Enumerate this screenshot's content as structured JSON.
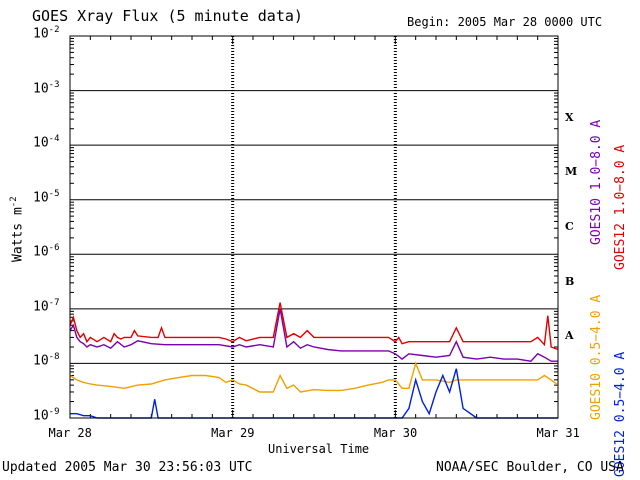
{
  "header": {
    "title": "GOES Xray Flux (5 minute data)",
    "begin": "Begin:  2005 Mar 28 0000 UTC"
  },
  "footer": {
    "updated": "Updated 2005 Mar 30 23:56:03 UTC",
    "credit": "NOAA/SEC Boulder, CO USA"
  },
  "chart_data": {
    "type": "line",
    "title": "GOES Xray Flux (5 minute data)",
    "xlabel": "Universal Time",
    "ylabel": "Watts m-2",
    "ylabel_main": "Watts m",
    "ylabel_sup": "-2",
    "yscale": "log",
    "ylim": [
      1e-09,
      0.01
    ],
    "xlim": [
      0,
      72
    ],
    "grid": true,
    "x_unit": "hours since 2005 Mar 28 0000 UTC",
    "x_ticks": [
      {
        "x": 0,
        "label": "Mar 28"
      },
      {
        "x": 24,
        "label": "Mar 29"
      },
      {
        "x": 48,
        "label": "Mar 30"
      },
      {
        "x": 72,
        "label": "Mar 31"
      }
    ],
    "y_ticks": [
      {
        "exp": -9,
        "label": "10",
        "sup": "-9"
      },
      {
        "exp": -8,
        "label": "10",
        "sup": "-8"
      },
      {
        "exp": -7,
        "label": "10",
        "sup": "-7"
      },
      {
        "exp": -6,
        "label": "10",
        "sup": "-6"
      },
      {
        "exp": -5,
        "label": "10",
        "sup": "-5"
      },
      {
        "exp": -4,
        "label": "10",
        "sup": "-4"
      },
      {
        "exp": -3,
        "label": "10",
        "sup": "-3"
      },
      {
        "exp": -2,
        "label": "10",
        "sup": "-2"
      }
    ],
    "flare_classes": [
      {
        "label": "A",
        "exp": -7.5
      },
      {
        "label": "B",
        "exp": -6.5
      },
      {
        "label": "C",
        "exp": -5.5
      },
      {
        "label": "M",
        "exp": -4.5
      },
      {
        "label": "X",
        "exp": -3.5
      }
    ],
    "legend_right": [
      {
        "text": "GOES12 1.0−8.0 A",
        "color": "#e00000"
      },
      {
        "text": "GOES10 1.0−8.0 A",
        "color": "#7a00b0"
      },
      {
        "text": "GOES12 0.5−4.0 A",
        "color": "#0020e0"
      },
      {
        "text": "GOES10 0.5−4.0 A",
        "color": "#f0a000"
      }
    ],
    "series": [
      {
        "name": "GOES12 1.0−8.0 A",
        "color": "#e00000",
        "x": [
          0,
          0.5,
          1,
          1.5,
          2,
          2.5,
          3,
          4,
          5,
          6,
          6.5,
          7,
          7.5,
          8,
          9,
          9.5,
          10,
          12,
          13,
          13.5,
          14,
          16,
          18,
          20,
          22,
          23,
          24,
          25,
          26,
          28,
          30,
          31,
          32,
          33,
          34,
          35,
          36,
          37,
          38,
          40,
          42,
          44,
          46,
          47,
          48,
          48.5,
          49,
          50,
          52,
          54,
          56,
          57,
          58,
          60,
          62,
          64,
          66,
          68,
          69,
          70,
          70.5,
          71,
          72
        ],
        "y": [
          5e-08,
          7e-08,
          4e-08,
          3e-08,
          3.5e-08,
          2.5e-08,
          3e-08,
          2.5e-08,
          3e-08,
          2.5e-08,
          3.5e-08,
          3e-08,
          2.8e-08,
          3e-08,
          3e-08,
          4e-08,
          3.2e-08,
          3e-08,
          3e-08,
          4.5e-08,
          3e-08,
          3e-08,
          3e-08,
          3e-08,
          3e-08,
          2.8e-08,
          2.5e-08,
          3e-08,
          2.6e-08,
          3e-08,
          3e-08,
          1.3e-07,
          3e-08,
          3.5e-08,
          3e-08,
          4e-08,
          3e-08,
          3e-08,
          3e-08,
          3e-08,
          3e-08,
          3e-08,
          3e-08,
          3e-08,
          2.5e-08,
          3e-08,
          2.3e-08,
          2.5e-08,
          2.5e-08,
          2.5e-08,
          2.5e-08,
          4.5e-08,
          2.5e-08,
          2.5e-08,
          2.5e-08,
          2.5e-08,
          2.5e-08,
          2.5e-08,
          3e-08,
          2.2e-08,
          7.5e-08,
          2e-08,
          1.8e-08
        ]
      },
      {
        "name": "GOES10 1.0−8.0 A",
        "color": "#7a00b0",
        "x": [
          0,
          0.5,
          1,
          1.5,
          2,
          2.5,
          3,
          4,
          5,
          6,
          7,
          8,
          9,
          10,
          12,
          14,
          16,
          18,
          20,
          22,
          24,
          25,
          26,
          28,
          30,
          31,
          32,
          33,
          34,
          35,
          36,
          37,
          38,
          40,
          42,
          44,
          46,
          47,
          48,
          49,
          50,
          52,
          54,
          56,
          57,
          58,
          60,
          62,
          64,
          66,
          68,
          69,
          70,
          71,
          72
        ],
        "y": [
          4e-08,
          5e-08,
          3e-08,
          2.5e-08,
          2.3e-08,
          2e-08,
          2.2e-08,
          2e-08,
          2.2e-08,
          1.9e-08,
          2.5e-08,
          2e-08,
          2.2e-08,
          2.6e-08,
          2.3e-08,
          2.2e-08,
          2.2e-08,
          2.2e-08,
          2.2e-08,
          2.2e-08,
          2e-08,
          2.2e-08,
          2e-08,
          2.2e-08,
          2e-08,
          1e-07,
          2e-08,
          2.5e-08,
          1.9e-08,
          2.2e-08,
          2e-08,
          1.9e-08,
          1.8e-08,
          1.7e-08,
          1.7e-08,
          1.7e-08,
          1.7e-08,
          1.7e-08,
          1.5e-08,
          1.2e-08,
          1.5e-08,
          1.4e-08,
          1.3e-08,
          1.4e-08,
          2.5e-08,
          1.3e-08,
          1.2e-08,
          1.3e-08,
          1.2e-08,
          1.2e-08,
          1.1e-08,
          1.5e-08,
          1.3e-08,
          1.1e-08,
          1.1e-08
        ]
      },
      {
        "name": "GOES10 0.5−4.0 A",
        "color": "#f0a000",
        "x": [
          0,
          1,
          2,
          3,
          4,
          6,
          8,
          10,
          12,
          14,
          16,
          18,
          20,
          22,
          23,
          24,
          25,
          26,
          28,
          30,
          31,
          32,
          33,
          34,
          36,
          38,
          40,
          42,
          44,
          46,
          47,
          48,
          49,
          50,
          51,
          52,
          54,
          56,
          57,
          58,
          60,
          62,
          64,
          66,
          68,
          69,
          70,
          71,
          72
        ],
        "y": [
          6e-09,
          5e-09,
          4.5e-09,
          4.2e-09,
          4e-09,
          3.8e-09,
          3.5e-09,
          4e-09,
          4.2e-09,
          5e-09,
          5.5e-09,
          6e-09,
          6e-09,
          5.5e-09,
          4.5e-09,
          5e-09,
          4.2e-09,
          4e-09,
          3e-09,
          3e-09,
          6e-09,
          3.5e-09,
          4e-09,
          3e-09,
          3.3e-09,
          3.2e-09,
          3.2e-09,
          3.5e-09,
          4e-09,
          4.5e-09,
          5e-09,
          5e-09,
          3.5e-09,
          3.5e-09,
          1e-08,
          5e-09,
          5e-09,
          4.5e-09,
          5e-09,
          5e-09,
          5e-09,
          5e-09,
          5e-09,
          5e-09,
          5e-09,
          5e-09,
          6e-09,
          5e-09,
          4e-09
        ]
      },
      {
        "name": "GOES12 0.5−4.0 A",
        "color": "#0020e0",
        "x": [
          0,
          1,
          2,
          3,
          4,
          6,
          8,
          9,
          10,
          12,
          12.5,
          13,
          14,
          16,
          18,
          20,
          22,
          23,
          24,
          25,
          26,
          28,
          30,
          32,
          34,
          36,
          38,
          40,
          42,
          44,
          46,
          47,
          48,
          49,
          50,
          51,
          52,
          53,
          54,
          55,
          56,
          57,
          58,
          60,
          62,
          64,
          66,
          68,
          70,
          71,
          72
        ],
        "y": [
          1.2e-09,
          1.2e-09,
          1.1e-09,
          1.1e-09,
          1e-09,
          1e-09,
          1e-09,
          1e-09,
          1e-09,
          1e-09,
          2.2e-09,
          1e-09,
          1e-09,
          1e-09,
          1e-09,
          1e-09,
          1e-09,
          1e-09,
          1e-09,
          1e-09,
          1e-09,
          1e-09,
          1e-09,
          1e-09,
          1e-09,
          1e-09,
          1e-09,
          1e-09,
          1e-09,
          1e-09,
          1e-09,
          1e-09,
          1e-09,
          1e-09,
          1.5e-09,
          5e-09,
          2e-09,
          1.2e-09,
          3e-09,
          6e-09,
          3e-09,
          8e-09,
          1.5e-09,
          1e-09,
          1e-09,
          1e-09,
          1e-09,
          1e-09,
          1e-09,
          1e-09,
          1e-09
        ]
      }
    ]
  }
}
